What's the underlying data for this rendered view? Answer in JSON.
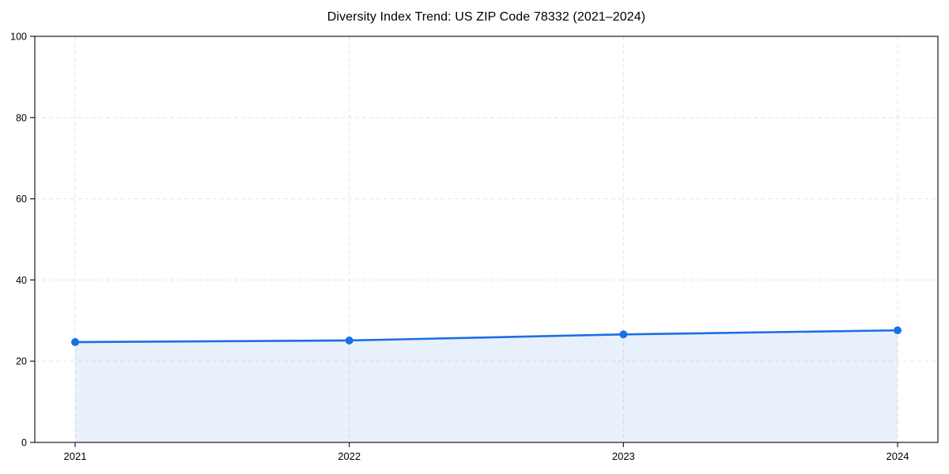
{
  "chart": {
    "title": "Diversity Index Trend: US ZIP Code 78332 (2021–2024)"
  },
  "chart_data": {
    "type": "area",
    "title": "Diversity Index Trend: US ZIP Code 78332 (2021–2024)",
    "x": [
      2021,
      2022,
      2023,
      2024
    ],
    "categories": [
      "2021",
      "2022",
      "2023",
      "2024"
    ],
    "series": [
      {
        "name": "Diversity Index",
        "values": [
          24.7,
          25.1,
          26.6,
          27.6
        ]
      }
    ],
    "xlabel": "",
    "ylabel": "",
    "ylim": [
      0,
      100
    ],
    "yticks": [
      0,
      20,
      40,
      60,
      80,
      100
    ],
    "grid": "dashed-both",
    "legend_position": "none",
    "marker": "circle",
    "colors": {
      "line": "#1b6ee3",
      "marker": "#1b6ee3",
      "area_fill": "rgba(27,110,227,0.10)",
      "grid": "#e3e3e3",
      "spine": "#1a1a1a",
      "tick_text": "#000000",
      "background": "#ffffff"
    }
  }
}
